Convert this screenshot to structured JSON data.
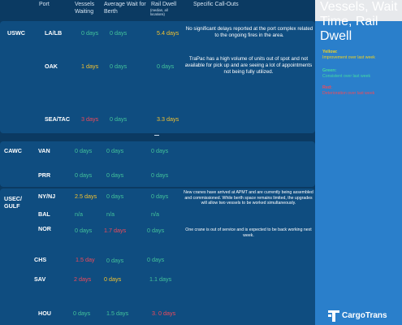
{
  "headers": {
    "port": "Port",
    "vessels_waiting": "Vessels Waiting",
    "average_wait": "Average Wait for Berth",
    "rail_dwell": "Rail Dwell",
    "rail_dwell_sub": "(median, all locations)",
    "callouts": "Specific Call-Outs"
  },
  "regions": {
    "uswc": "USWC",
    "cawc": "CAWC",
    "usec": "USEC/ GULF"
  },
  "rows": {
    "lalb": {
      "port": "LA/LB",
      "vessels": "0 days",
      "wait": "0 days",
      "rail": "5.4 days"
    },
    "oak": {
      "port": "OAK",
      "vessels": "1 days",
      "wait": "0 days",
      "rail": "0 days"
    },
    "seatac": {
      "port": "SEA/TAC",
      "vessels": "3 days",
      "wait": "0 days",
      "rail": "3.3 days"
    },
    "van": {
      "port": "VAN",
      "vessels": "0 days",
      "wait": "0 days",
      "rail": "0 days"
    },
    "prr": {
      "port": "PRR",
      "vessels": "0 days",
      "wait": "0 days",
      "rail": "0 days"
    },
    "nynj": {
      "port": "NY/NJ",
      "vessels": "2.5 days",
      "wait": "0 days",
      "rail": "0 days"
    },
    "bal": {
      "port": "BAL",
      "vessels": "n/a",
      "wait": "n/a",
      "rail": "n/a"
    },
    "nor": {
      "port": "NOR",
      "vessels": "0 days",
      "wait": "1.7 days",
      "rail": "0 days"
    },
    "chs": {
      "port": "CHS",
      "vessels": "1.5 day",
      "wait": "0 days",
      "rail": "0 days"
    },
    "sav": {
      "port": "SAV",
      "vessels": "2 days",
      "wait": "0 days",
      "rail": "1.1 days"
    },
    "hou": {
      "port": "HOU",
      "vessels": "0 days",
      "wait": "1.5 days",
      "rail": "3. 0 days"
    }
  },
  "callouts": {
    "lalb": "No significant delays reported at the port complex related to the ongoing fires in the area.",
    "oak": "TraPac has a high volume of units out of spot and not available for pick up and are seeing a lot of appointments not being fully utilized.",
    "nynj": "New cranes have arrived at APMT and are currently being assembled and commissioned. While berth space remains limited, the upgrades will allow two vessels to be worked simultaneously.",
    "nor": "One crane is out of service and is expected to be back working next week."
  },
  "sidebar": {
    "title": "Vessels, Wait Time, Rail Dwell",
    "legend": [
      {
        "heading": "Yellow:",
        "desc": "Improvement over last week",
        "color": "#f2d21f"
      },
      {
        "heading": "Green:",
        "desc": "Consistent over last week",
        "color": "#43d9a2"
      },
      {
        "heading": "Red:",
        "desc": "Deterioration over last week",
        "color": "#f04a5a"
      }
    ]
  },
  "logo": {
    "text": "CargoTrans",
    "icon": "cargotrans-logo-icon"
  },
  "colors": {
    "background": "#0b3a62",
    "band": "#0f4d80",
    "sidebar": "#2a7fcb",
    "green": "#43c39a",
    "yellow": "#f2c230",
    "red": "#f04a5a"
  }
}
